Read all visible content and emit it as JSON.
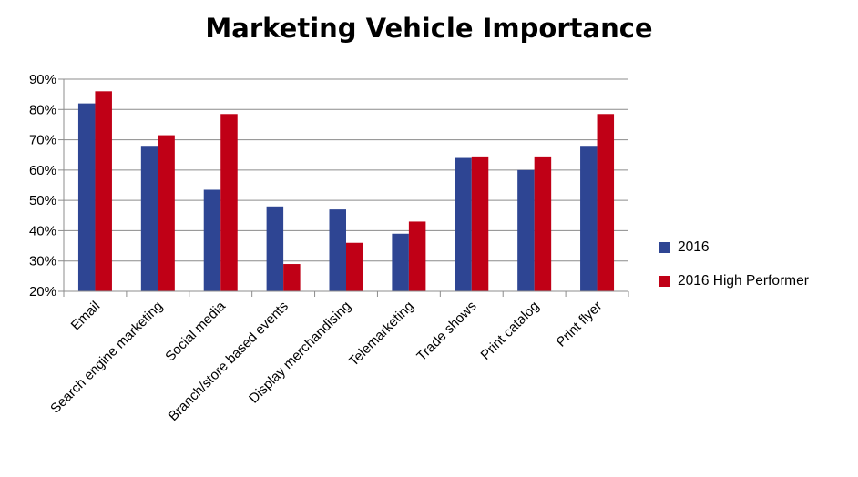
{
  "chart_data": {
    "type": "bar",
    "title": "Marketing Vehicle Importance",
    "categories": [
      "Email",
      "Search engine marketing",
      "Social media",
      "Branch/store based events",
      "Display merchandising",
      "Telemarketing",
      "Trade shows",
      "Print catalog",
      "Print flyer"
    ],
    "series": [
      {
        "name": "2016",
        "color": "#2E4593",
        "values": [
          82,
          68,
          53.5,
          48,
          47,
          39,
          64,
          60,
          68
        ]
      },
      {
        "name": "2016 High Performer",
        "color": "#C00016",
        "values": [
          86,
          71.5,
          78.5,
          29,
          36,
          43,
          64.5,
          64.5,
          78.5
        ]
      }
    ],
    "ylim": [
      20,
      90
    ],
    "yticks": [
      "20%",
      "30%",
      "40%",
      "50%",
      "60%",
      "70%",
      "80%",
      "90%"
    ],
    "grid": true,
    "legend_position": "right"
  }
}
